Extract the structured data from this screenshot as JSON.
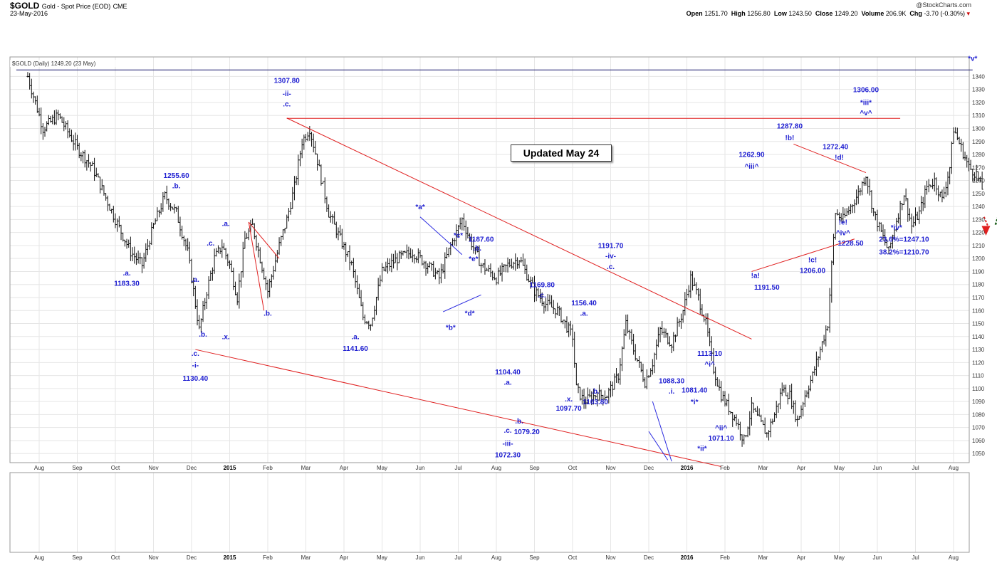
{
  "header": {
    "symbol": "$GOLD",
    "description": "Gold - Spot Price (EOD)",
    "exchange": "CME",
    "date": "23-May-2016",
    "brand": "@StockCharts.com",
    "open_label": "Open",
    "open": "1251.70",
    "high_label": "High",
    "high": "1256.80",
    "low_label": "Low",
    "low": "1243.50",
    "close_label": "Close",
    "close": "1249.20",
    "volume_label": "Volume",
    "volume": "206.9K",
    "chg_label": "Chg",
    "chg": "-3.70 (-0.30%)"
  },
  "legend": "$GOLD (Daily) 1249.20 (23 May)",
  "badge": "Updated May 24",
  "colors": {
    "wave_label": "#1f1fd1",
    "trendline": "#e02020",
    "blue_line": "#2a2ae0",
    "projection": "#1a5e1a",
    "down_arrow": "#e02020",
    "price_bars": "#111111"
  },
  "chart_data": {
    "type": "ohlc",
    "title": "$GOLD Gold - Spot Price (EOD)",
    "ylim": [
      1043,
      1355
    ],
    "y_ticks": [
      1050,
      1060,
      1070,
      1080,
      1090,
      1100,
      1110,
      1120,
      1130,
      1140,
      1150,
      1160,
      1170,
      1180,
      1190,
      1200,
      1210,
      1220,
      1230,
      1240,
      1250,
      1260,
      1270,
      1280,
      1290,
      1300,
      1310,
      1320,
      1330,
      1340
    ],
    "x_ticks": [
      {
        "label": "Aug",
        "month": 0
      },
      {
        "label": "Sep",
        "month": 1
      },
      {
        "label": "Oct",
        "month": 2
      },
      {
        "label": "Nov",
        "month": 3
      },
      {
        "label": "Dec",
        "month": 4
      },
      {
        "label": "2015",
        "month": 5,
        "bold": true
      },
      {
        "label": "Feb",
        "month": 6
      },
      {
        "label": "Mar",
        "month": 7
      },
      {
        "label": "Apr",
        "month": 8
      },
      {
        "label": "May",
        "month": 9
      },
      {
        "label": "Jun",
        "month": 10
      },
      {
        "label": "Jul",
        "month": 11
      },
      {
        "label": "Aug",
        "month": 12
      },
      {
        "label": "Sep",
        "month": 13
      },
      {
        "label": "Oct",
        "month": 14
      },
      {
        "label": "Nov",
        "month": 15
      },
      {
        "label": "Dec",
        "month": 16
      },
      {
        "label": "2016",
        "month": 17,
        "bold": true
      },
      {
        "label": "Feb",
        "month": 18
      },
      {
        "label": "Mar",
        "month": 19
      },
      {
        "label": "Apr",
        "month": 20
      },
      {
        "label": "May",
        "month": 21
      },
      {
        "label": "Jun",
        "month": 22
      },
      {
        "label": "Jul",
        "month": 23
      },
      {
        "label": "Aug",
        "month": 24
      }
    ],
    "price_path": [
      [
        -0.3,
        1340
      ],
      [
        0.1,
        1300
      ],
      [
        0.5,
        1310
      ],
      [
        1.0,
        1285
      ],
      [
        1.4,
        1270
      ],
      [
        2.0,
        1230
      ],
      [
        2.4,
        1205
      ],
      [
        2.7,
        1195
      ],
      [
        3.0,
        1225
      ],
      [
        3.3,
        1248
      ],
      [
        3.6,
        1235
      ],
      [
        3.9,
        1205
      ],
      [
        4.2,
        1145
      ],
      [
        4.4,
        1175
      ],
      [
        4.6,
        1200
      ],
      [
        4.8,
        1210
      ],
      [
        5.0,
        1195
      ],
      [
        5.2,
        1170
      ],
      [
        5.4,
        1215
      ],
      [
        5.6,
        1225
      ],
      [
        5.8,
        1200
      ],
      [
        6.0,
        1175
      ],
      [
        6.3,
        1210
      ],
      [
        6.5,
        1230
      ],
      [
        6.7,
        1255
      ],
      [
        6.9,
        1290
      ],
      [
        7.1,
        1300
      ],
      [
        7.3,
        1275
      ],
      [
        7.6,
        1235
      ],
      [
        7.9,
        1215
      ],
      [
        8.2,
        1195
      ],
      [
        8.5,
        1155
      ],
      [
        8.7,
        1150
      ],
      [
        9.0,
        1190
      ],
      [
        9.4,
        1200
      ],
      [
        9.8,
        1205
      ],
      [
        10.2,
        1195
      ],
      [
        10.5,
        1185
      ],
      [
        10.8,
        1210
      ],
      [
        11.1,
        1230
      ],
      [
        11.3,
        1215
      ],
      [
        11.6,
        1195
      ],
      [
        12.0,
        1185
      ],
      [
        12.3,
        1195
      ],
      [
        12.6,
        1200
      ],
      [
        13.0,
        1175
      ],
      [
        13.3,
        1165
      ],
      [
        13.6,
        1160
      ],
      [
        14.0,
        1140
      ],
      [
        14.1,
        1100
      ],
      [
        14.3,
        1090
      ],
      [
        14.6,
        1095
      ],
      [
        14.9,
        1095
      ],
      [
        15.2,
        1110
      ],
      [
        15.4,
        1150
      ],
      [
        15.6,
        1130
      ],
      [
        15.9,
        1105
      ],
      [
        16.1,
        1120
      ],
      [
        16.3,
        1145
      ],
      [
        16.6,
        1135
      ],
      [
        16.9,
        1160
      ],
      [
        17.1,
        1185
      ],
      [
        17.3,
        1170
      ],
      [
        17.5,
        1150
      ],
      [
        17.7,
        1115
      ],
      [
        17.9,
        1095
      ],
      [
        18.1,
        1085
      ],
      [
        18.3,
        1075
      ],
      [
        18.5,
        1060
      ],
      [
        18.7,
        1085
      ],
      [
        18.9,
        1075
      ],
      [
        19.1,
        1065
      ],
      [
        19.3,
        1080
      ],
      [
        19.5,
        1100
      ],
      [
        19.7,
        1095
      ],
      [
        19.9,
        1075
      ],
      [
        20.1,
        1095
      ],
      [
        20.3,
        1110
      ],
      [
        20.5,
        1130
      ],
      [
        20.7,
        1150
      ],
      [
        20.8,
        1195
      ],
      [
        20.9,
        1235
      ],
      [
        21.1,
        1230
      ],
      [
        21.3,
        1240
      ],
      [
        21.5,
        1250
      ],
      [
        21.7,
        1265
      ],
      [
        21.9,
        1235
      ],
      [
        22.1,
        1220
      ],
      [
        22.3,
        1205
      ],
      [
        22.5,
        1230
      ],
      [
        22.7,
        1250
      ],
      [
        22.9,
        1225
      ],
      [
        23.1,
        1235
      ],
      [
        23.3,
        1255
      ],
      [
        23.5,
        1260
      ],
      [
        23.7,
        1245
      ],
      [
        23.9,
        1270
      ],
      [
        24.0,
        1300
      ],
      [
        24.2,
        1285
      ],
      [
        24.4,
        1270
      ],
      [
        24.6,
        1265
      ],
      [
        24.8,
        1250
      ]
    ],
    "wave_labels": [
      {
        "text": "1255.60",
        "m": 3.6,
        "p": 1262
      },
      {
        "text": ".b.",
        "m": 3.6,
        "p": 1254
      },
      {
        "text": ".a.",
        "m": 2.3,
        "p": 1187
      },
      {
        "text": "1183.30",
        "m": 2.3,
        "p": 1179
      },
      {
        "text": ".a.",
        "m": 4.1,
        "p": 1182
      },
      {
        "text": ".b.",
        "m": 4.3,
        "p": 1140
      },
      {
        "text": ".c.",
        "m": 4.1,
        "p": 1125
      },
      {
        "text": "-i-",
        "m": 4.1,
        "p": 1116
      },
      {
        "text": "1130.40",
        "m": 4.1,
        "p": 1106
      },
      {
        "text": ".c.",
        "m": 4.5,
        "p": 1210
      },
      {
        "text": ".x.",
        "m": 4.9,
        "p": 1138
      },
      {
        "text": ".a.",
        "m": 4.9,
        "p": 1225
      },
      {
        "text": ".b.",
        "m": 6.0,
        "p": 1156
      },
      {
        "text": "1307.80",
        "m": 6.5,
        "p": 1335
      },
      {
        "text": "-ii-",
        "m": 6.5,
        "p": 1325
      },
      {
        "text": ".c.",
        "m": 6.5,
        "p": 1317
      },
      {
        "text": ".a.",
        "m": 8.3,
        "p": 1138
      },
      {
        "text": "1141.60",
        "m": 8.3,
        "p": 1129
      },
      {
        "text": "*a*",
        "m": 10.0,
        "p": 1238
      },
      {
        "text": "*b*",
        "m": 10.8,
        "p": 1145
      },
      {
        "text": "*c*",
        "m": 11.0,
        "p": 1216
      },
      {
        "text": "1187.60",
        "m": 11.6,
        "p": 1213
      },
      {
        "text": ".b.",
        "m": 11.5,
        "p": 1206
      },
      {
        "text": "*e*",
        "m": 11.4,
        "p": 1198
      },
      {
        "text": "*d*",
        "m": 11.3,
        "p": 1156
      },
      {
        "text": ".a.",
        "m": 12.3,
        "p": 1103
      },
      {
        "text": "1104.40",
        "m": 12.3,
        "p": 1111
      },
      {
        "text": ".b.",
        "m": 12.6,
        "p": 1073
      },
      {
        "text": ".c.",
        "m": 12.3,
        "p": 1066
      },
      {
        "text": "1079.20",
        "m": 12.8,
        "p": 1065
      },
      {
        "text": "-iii-",
        "m": 12.3,
        "p": 1056
      },
      {
        "text": "1072.30",
        "m": 12.3,
        "p": 1047
      },
      {
        "text": "1169.80",
        "m": 13.2,
        "p": 1178
      },
      {
        "text": ".c.",
        "m": 13.2,
        "p": 1170
      },
      {
        "text": ".x.",
        "m": 13.9,
        "p": 1090
      },
      {
        "text": "1097.70",
        "m": 13.9,
        "p": 1083
      },
      {
        "text": "1156.40",
        "m": 14.3,
        "p": 1164
      },
      {
        "text": ".a.",
        "m": 14.3,
        "p": 1156
      },
      {
        "text": ".b.",
        "m": 14.6,
        "p": 1096
      },
      {
        "text": "1103.80",
        "m": 14.6,
        "p": 1088
      },
      {
        "text": "1191.70",
        "m": 15.0,
        "p": 1208
      },
      {
        "text": "-iv-",
        "m": 15.0,
        "p": 1200
      },
      {
        "text": ".c.",
        "m": 15.0,
        "p": 1192
      },
      {
        "text": "1088.30",
        "m": 16.6,
        "p": 1104
      },
      {
        "text": ".i.",
        "m": 16.6,
        "p": 1096
      },
      {
        "text": "1081.40",
        "m": 17.2,
        "p": 1097
      },
      {
        "text": "*i*",
        "m": 17.2,
        "p": 1088
      },
      {
        "text": "*ii*",
        "m": 17.4,
        "p": 1052
      },
      {
        "text": "1113.10",
        "m": 17.6,
        "p": 1125
      },
      {
        "text": "^i^",
        "m": 17.6,
        "p": 1117
      },
      {
        "text": "^ii^",
        "m": 17.9,
        "p": 1068
      },
      {
        "text": "1071.10",
        "m": 17.9,
        "p": 1060
      },
      {
        "text": "1262.90",
        "m": 18.7,
        "p": 1278
      },
      {
        "text": "^iii^",
        "m": 18.7,
        "p": 1269
      },
      {
        "text": "!a!",
        "m": 18.8,
        "p": 1185
      },
      {
        "text": "1191.50",
        "m": 19.1,
        "p": 1176
      },
      {
        "text": "1287.80",
        "m": 19.7,
        "p": 1300
      },
      {
        "text": "!b!",
        "m": 19.7,
        "p": 1291
      },
      {
        "text": "!c!",
        "m": 20.3,
        "p": 1197
      },
      {
        "text": "1206.00",
        "m": 20.3,
        "p": 1189
      },
      {
        "text": "1272.40",
        "m": 20.9,
        "p": 1284
      },
      {
        "text": "!d!",
        "m": 21.0,
        "p": 1276
      },
      {
        "text": "!e!",
        "m": 21.1,
        "p": 1226
      },
      {
        "text": "^iv^",
        "m": 21.1,
        "p": 1218
      },
      {
        "text": "1228.50",
        "m": 21.3,
        "p": 1210
      },
      {
        "text": "1306.00",
        "m": 21.7,
        "p": 1328
      },
      {
        "text": "*iii*",
        "m": 21.7,
        "p": 1318
      },
      {
        "text": "^v^",
        "m": 21.7,
        "p": 1310
      },
      {
        "text": "*iv*",
        "m": 22.5,
        "p": 1222
      },
      {
        "text": "23.6%=1247.10",
        "m": 22.7,
        "p": 1213
      },
      {
        "text": "38.2%=1210.70",
        "m": 22.7,
        "p": 1203
      },
      {
        "text": "*v*",
        "m": 24.5,
        "p": 1352
      }
    ]
  }
}
